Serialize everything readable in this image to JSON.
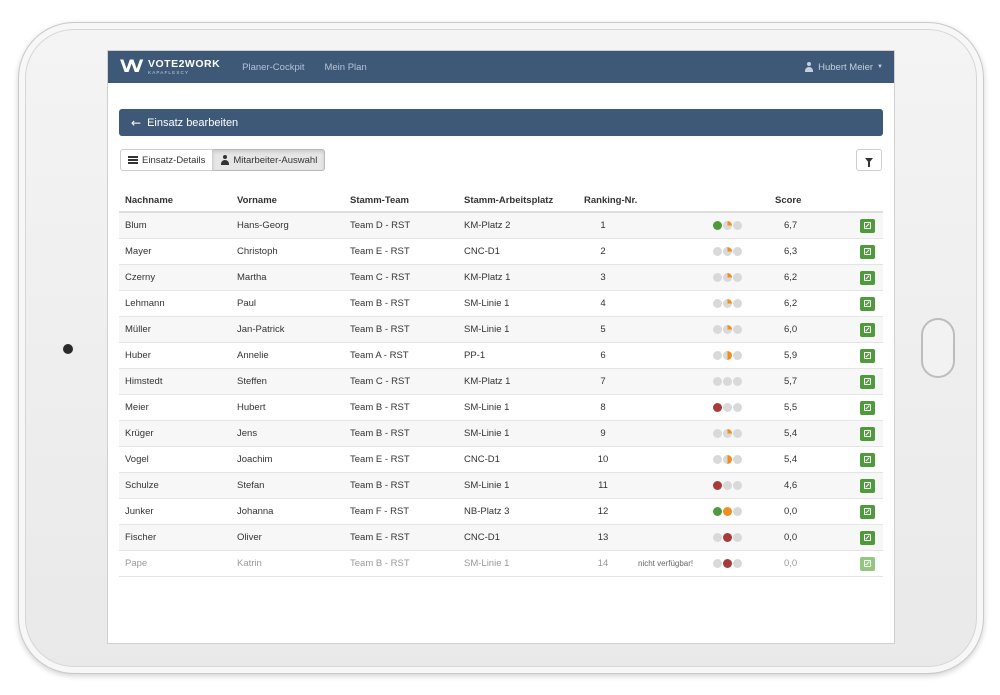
{
  "brand": {
    "name": "VOTE2WORK",
    "tagline": "KAPAFLEXCY"
  },
  "nav": {
    "links": [
      "Planer-Cockpit",
      "Mein Plan"
    ],
    "user": "Hubert Meier"
  },
  "panel": {
    "title": "Einsatz bearbeiten"
  },
  "tabs": [
    {
      "label": "Einsatz-Details",
      "active": false
    },
    {
      "label": "Mitarbeiter-Auswahl",
      "active": true
    }
  ],
  "colors": {
    "navbar": "#3e5978",
    "green": "#4f9a3c",
    "red": "#a83a3a",
    "orange": "#ee8f1f",
    "grey": "#d9d9d9"
  },
  "table": {
    "headers": {
      "last": "Nachname",
      "first": "Vorname",
      "team": "Stamm-Team",
      "place": "Stamm-Arbeitsplatz",
      "rank": "Ranking-Nr.",
      "score": "Score"
    },
    "rows": [
      {
        "last": "Blum",
        "first": "Hans-Georg",
        "team": "Team D - RST",
        "place": "KM-Platz 2",
        "rank": "1",
        "note": "",
        "status": [
          "green",
          "quarter",
          "grey"
        ],
        "score": "6,7",
        "dimmed": false
      },
      {
        "last": "Mayer",
        "first": "Christoph",
        "team": "Team E - RST",
        "place": "CNC-D1",
        "rank": "2",
        "note": "",
        "status": [
          "grey",
          "quarter",
          "grey"
        ],
        "score": "6,3",
        "dimmed": false
      },
      {
        "last": "Czerny",
        "first": "Martha",
        "team": "Team C - RST",
        "place": "KM-Platz 1",
        "rank": "3",
        "note": "",
        "status": [
          "grey",
          "quarter",
          "grey"
        ],
        "score": "6,2",
        "dimmed": false
      },
      {
        "last": "Lehmann",
        "first": "Paul",
        "team": "Team B - RST",
        "place": "SM-Linie 1",
        "rank": "4",
        "note": "",
        "status": [
          "grey",
          "quarter",
          "grey"
        ],
        "score": "6,2",
        "dimmed": false
      },
      {
        "last": "Müller",
        "first": "Jan-Patrick",
        "team": "Team B - RST",
        "place": "SM-Linie 1",
        "rank": "5",
        "note": "",
        "status": [
          "grey",
          "quarter",
          "grey"
        ],
        "score": "6,0",
        "dimmed": false
      },
      {
        "last": "Huber",
        "first": "Annelie",
        "team": "Team A - RST",
        "place": "PP-1",
        "rank": "6",
        "note": "",
        "status": [
          "grey",
          "half",
          "grey"
        ],
        "score": "5,9",
        "dimmed": false
      },
      {
        "last": "Himstedt",
        "first": "Steffen",
        "team": "Team C - RST",
        "place": "KM-Platz 1",
        "rank": "7",
        "note": "",
        "status": [
          "grey",
          "grey",
          "grey"
        ],
        "score": "5,7",
        "dimmed": false
      },
      {
        "last": "Meier",
        "first": "Hubert",
        "team": "Team B - RST",
        "place": "SM-Linie 1",
        "rank": "8",
        "note": "",
        "status": [
          "red",
          "grey",
          "grey"
        ],
        "score": "5,5",
        "dimmed": false
      },
      {
        "last": "Krüger",
        "first": "Jens",
        "team": "Team B - RST",
        "place": "SM-Linie 1",
        "rank": "9",
        "note": "",
        "status": [
          "grey",
          "quarter",
          "grey"
        ],
        "score": "5,4",
        "dimmed": false
      },
      {
        "last": "Vogel",
        "first": "Joachim",
        "team": "Team E - RST",
        "place": "CNC-D1",
        "rank": "10",
        "note": "",
        "status": [
          "grey",
          "half",
          "grey"
        ],
        "score": "5,4",
        "dimmed": false
      },
      {
        "last": "Schulze",
        "first": "Stefan",
        "team": "Team B - RST",
        "place": "SM-Linie 1",
        "rank": "11",
        "note": "",
        "status": [
          "red",
          "grey",
          "grey"
        ],
        "score": "4,6",
        "dimmed": false
      },
      {
        "last": "Junker",
        "first": "Johanna",
        "team": "Team F - RST",
        "place": "NB-Platz 3",
        "rank": "12",
        "note": "",
        "status": [
          "green",
          "orange",
          "grey"
        ],
        "score": "0,0",
        "dimmed": false
      },
      {
        "last": "Fischer",
        "first": "Oliver",
        "team": "Team E - RST",
        "place": "CNC-D1",
        "rank": "13",
        "note": "",
        "status": [
          "grey",
          "red",
          "grey"
        ],
        "score": "0,0",
        "dimmed": false
      },
      {
        "last": "Pape",
        "first": "Katrin",
        "team": "Team B - RST",
        "place": "SM-Linie 1",
        "rank": "14",
        "note": "nicht verfügbar!",
        "status": [
          "grey",
          "red",
          "grey"
        ],
        "score": "0,0",
        "dimmed": true
      }
    ]
  }
}
